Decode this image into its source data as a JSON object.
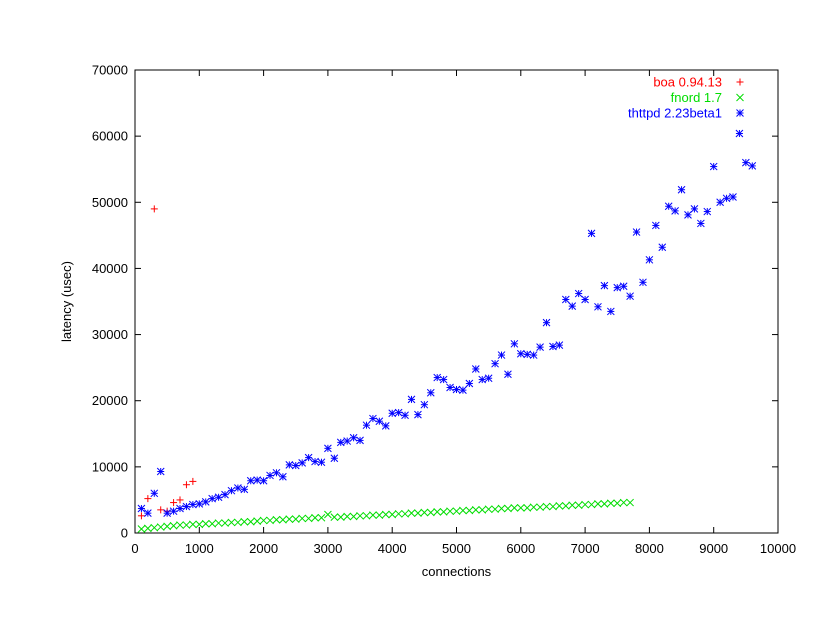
{
  "chart_data": {
    "type": "scatter",
    "title": "",
    "xlabel": "connections",
    "ylabel": "latency (usec)",
    "xlim": [
      0,
      10000
    ],
    "ylim": [
      0,
      70000
    ],
    "xticks": [
      0,
      1000,
      2000,
      3000,
      4000,
      5000,
      6000,
      7000,
      8000,
      9000,
      10000
    ],
    "yticks": [
      0,
      10000,
      20000,
      30000,
      40000,
      50000,
      60000,
      70000
    ],
    "grid": false,
    "legend_position": "top-right",
    "series": [
      {
        "name": "boa 0.94.13",
        "color": "#ff0000",
        "marker": "plus",
        "x": [
          100,
          200,
          300,
          400,
          500,
          600,
          700,
          800,
          900
        ],
        "y": [
          2600,
          5200,
          49000,
          3500,
          3300,
          4600,
          5000,
          7300,
          7800
        ]
      },
      {
        "name": "fnord 1.7",
        "color": "#00dd00",
        "marker": "cross",
        "x": [
          100,
          200,
          300,
          400,
          500,
          600,
          700,
          800,
          900,
          1000,
          1100,
          1200,
          1300,
          1400,
          1500,
          1600,
          1700,
          1800,
          1900,
          2000,
          2100,
          2200,
          2300,
          2400,
          2500,
          2600,
          2700,
          2800,
          2900,
          3000,
          3100,
          3200,
          3300,
          3400,
          3500,
          3600,
          3700,
          3800,
          3900,
          4000,
          4100,
          4200,
          4300,
          4400,
          4500,
          4600,
          4700,
          4800,
          4900,
          5000,
          5100,
          5200,
          5300,
          5400,
          5500,
          5600,
          5700,
          5800,
          5900,
          6000,
          6100,
          6200,
          6300,
          6400,
          6500,
          6600,
          6700,
          6800,
          6900,
          7000,
          7100,
          7200,
          7300,
          7400,
          7500,
          7600,
          7700
        ],
        "y": [
          600,
          700,
          800,
          900,
          1000,
          1100,
          1200,
          1200,
          1300,
          1300,
          1400,
          1400,
          1500,
          1500,
          1600,
          1600,
          1700,
          1700,
          1800,
          1900,
          1900,
          2000,
          2000,
          2100,
          2100,
          2200,
          2200,
          2300,
          2300,
          2800,
          2400,
          2400,
          2500,
          2500,
          2600,
          2600,
          2700,
          2700,
          2800,
          2800,
          2900,
          2900,
          3000,
          3000,
          3100,
          3100,
          3200,
          3200,
          3300,
          3300,
          3400,
          3400,
          3500,
          3500,
          3600,
          3600,
          3700,
          3700,
          3800,
          3800,
          3800,
          3900,
          3900,
          4000,
          4000,
          4100,
          4100,
          4200,
          4200,
          4300,
          4300,
          4400,
          4400,
          4500,
          4500,
          4600,
          4600
        ]
      },
      {
        "name": "thttpd 2.23beta1",
        "color": "#0000ff",
        "marker": "star",
        "x": [
          100,
          200,
          300,
          400,
          500,
          600,
          700,
          800,
          900,
          1000,
          1100,
          1200,
          1300,
          1400,
          1500,
          1600,
          1700,
          1800,
          1900,
          2000,
          2100,
          2200,
          2300,
          2400,
          2500,
          2600,
          2700,
          2800,
          2900,
          3000,
          3100,
          3200,
          3300,
          3400,
          3500,
          3600,
          3700,
          3800,
          3900,
          4000,
          4100,
          4200,
          4300,
          4400,
          4500,
          4600,
          4700,
          4800,
          4900,
          5000,
          5100,
          5200,
          5300,
          5400,
          5500,
          5600,
          5700,
          5800,
          5900,
          6000,
          6100,
          6200,
          6300,
          6400,
          6500,
          6600,
          6700,
          6800,
          6900,
          7000,
          7100,
          7200,
          7300,
          7400,
          7500,
          7600,
          7700,
          7800,
          7900,
          8000,
          8100,
          8200,
          8300,
          8400,
          8500,
          8600,
          8700,
          8800,
          8900,
          9000,
          9100,
          9200,
          9300,
          9400,
          9500,
          9600
        ],
        "y": [
          3700,
          3000,
          6000,
          9300,
          3000,
          3300,
          3700,
          4000,
          4300,
          4400,
          4700,
          5200,
          5400,
          5800,
          6400,
          6800,
          6600,
          7900,
          8000,
          7900,
          8700,
          9100,
          8500,
          10300,
          10200,
          10600,
          11400,
          10800,
          10700,
          12800,
          11300,
          13700,
          13900,
          14400,
          14000,
          16300,
          17300,
          16900,
          16200,
          18100,
          18200,
          17800,
          20200,
          17900,
          19400,
          21200,
          23500,
          23200,
          22000,
          21700,
          21600,
          22600,
          24800,
          23200,
          23400,
          25600,
          26900,
          24000,
          28600,
          27100,
          27000,
          26900,
          28100,
          31800,
          28200,
          28400,
          35300,
          34300,
          36200,
          35300,
          45300,
          34200,
          37400,
          33500,
          37100,
          37300,
          35800,
          45500,
          37900,
          41300,
          46500,
          43200,
          49400,
          48700,
          51900,
          48100,
          49000,
          46800,
          48600,
          55400,
          50000,
          50600,
          50800,
          60400,
          56000,
          55500
        ]
      }
    ]
  }
}
